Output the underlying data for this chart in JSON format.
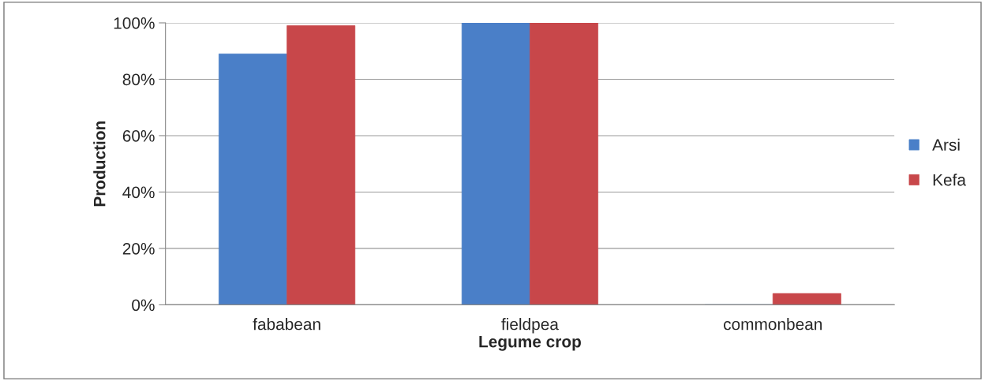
{
  "chart_data": {
    "type": "bar",
    "xlabel": "Legume crop",
    "ylabel": "Production",
    "categories": [
      "fababean",
      "fieldpea",
      "commonbean"
    ],
    "series": [
      {
        "name": "Arsi",
        "color": "#4a7fc8",
        "values": [
          89,
          100,
          0
        ]
      },
      {
        "name": "Kefa",
        "color": "#c8474a",
        "values": [
          99,
          100,
          4
        ]
      }
    ],
    "ylim": [
      0,
      100
    ],
    "yticks": [
      {
        "value": 0,
        "label": "0%"
      },
      {
        "value": 20,
        "label": "20%"
      },
      {
        "value": 40,
        "label": "40%"
      },
      {
        "value": 60,
        "label": "60%"
      },
      {
        "value": 80,
        "label": "80%"
      },
      {
        "value": 100,
        "label": "100%"
      }
    ],
    "grid": "y",
    "legend": "right"
  }
}
